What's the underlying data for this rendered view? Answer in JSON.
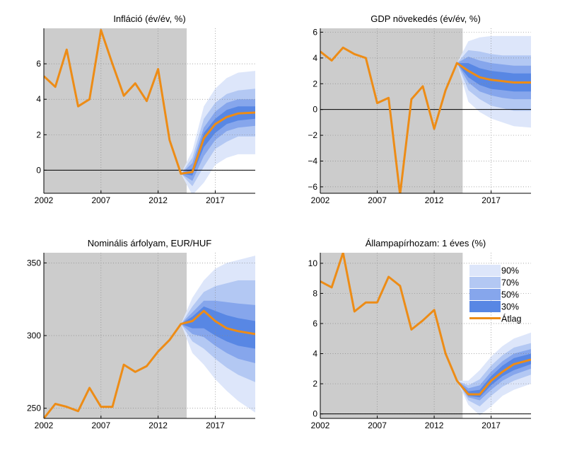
{
  "colors": {
    "history_shade": "#cccccc",
    "band_90": "#dde6fa",
    "band_70": "#b3c8f3",
    "band_50": "#86a6ec",
    "band_30": "#5887e4",
    "mean_line": "#ed8c16",
    "zero_line": "#000000",
    "grid": "#888888"
  },
  "legend": {
    "items": [
      {
        "label": "90%",
        "color_key": "band_90",
        "kind": "patch"
      },
      {
        "label": "70%",
        "color_key": "band_70",
        "kind": "patch"
      },
      {
        "label": "50%",
        "color_key": "band_50",
        "kind": "patch"
      },
      {
        "label": "30%",
        "color_key": "band_30",
        "kind": "patch"
      },
      {
        "label": "Átlag",
        "color_key": "mean_line",
        "kind": "line"
      }
    ]
  },
  "chart_data": [
    {
      "type": "area",
      "id": "inflation",
      "title": "Infláció (év/év, %)",
      "xlim": [
        2002,
        2020.5
      ],
      "ylim": [
        -1.3,
        8.0
      ],
      "xticks": [
        2002,
        2007,
        2012,
        2017
      ],
      "yticks": [
        0,
        2,
        4,
        6
      ],
      "ytick_labels": [
        "0",
        "2",
        "4",
        "6"
      ],
      "history_end": 2014.5,
      "zero_line": true,
      "mean": {
        "x": [
          2002,
          2003,
          2004,
          2005,
          2006,
          2007,
          2008,
          2009,
          2010,
          2011,
          2012,
          2013,
          2014,
          2015,
          2016,
          2017,
          2018,
          2019,
          2020.5
        ],
        "y": [
          5.3,
          4.7,
          6.8,
          3.6,
          4.0,
          7.9,
          6.0,
          4.2,
          4.9,
          3.9,
          5.7,
          1.7,
          -0.2,
          -0.1,
          1.8,
          2.6,
          3.0,
          3.2,
          3.25
        ]
      },
      "fan": {
        "x": [
          2014,
          2015,
          2016,
          2017,
          2018,
          2019,
          2020.5
        ],
        "bands": [
          {
            "level": "90%",
            "lower": [
              -0.2,
              -1.4,
              -0.7,
              0.3,
              0.7,
              0.9,
              0.9
            ],
            "upper": [
              -0.2,
              1.1,
              3.6,
              4.6,
              5.2,
              5.5,
              5.6
            ]
          },
          {
            "level": "70%",
            "lower": [
              -0.2,
              -0.9,
              0.2,
              1.2,
              1.6,
              1.9,
              1.9
            ],
            "upper": [
              -0.2,
              0.7,
              2.9,
              3.8,
              4.3,
              4.5,
              4.6
            ]
          },
          {
            "level": "50%",
            "lower": [
              -0.2,
              -0.6,
              0.8,
              1.7,
              2.2,
              2.4,
              2.5
            ],
            "upper": [
              -0.2,
              0.4,
              2.4,
              3.3,
              3.8,
              4.0,
              4.0
            ]
          },
          {
            "level": "30%",
            "lower": [
              -0.2,
              -0.3,
              1.3,
              2.1,
              2.6,
              2.8,
              2.9
            ],
            "upper": [
              -0.2,
              0.1,
              2.1,
              2.9,
              3.4,
              3.6,
              3.6
            ]
          }
        ]
      }
    },
    {
      "type": "area",
      "id": "gdp",
      "title": "GDP növekedés (év/év, %)",
      "xlim": [
        2002,
        2020.5
      ],
      "ylim": [
        -6.5,
        6.3
      ],
      "xticks": [
        2002,
        2007,
        2012,
        2017
      ],
      "yticks": [
        -6,
        -4,
        -2,
        0,
        2,
        4,
        6
      ],
      "ytick_labels": [
        "−6",
        "−4",
        "−2",
        "0",
        "2",
        "4",
        "6"
      ],
      "history_end": 2014.5,
      "zero_line": true,
      "mean": {
        "x": [
          2002,
          2003,
          2004,
          2005,
          2006,
          2007,
          2008,
          2009,
          2010,
          2011,
          2012,
          2013,
          2014,
          2015,
          2016,
          2017,
          2018,
          2019,
          2020.5
        ],
        "y": [
          4.5,
          3.8,
          4.8,
          4.3,
          4.0,
          0.5,
          0.9,
          -6.6,
          0.8,
          1.8,
          -1.5,
          1.5,
          3.6,
          3.0,
          2.5,
          2.3,
          2.2,
          2.1,
          2.1
        ]
      },
      "fan": {
        "x": [
          2014,
          2015,
          2016,
          2017,
          2018,
          2019,
          2020.5
        ],
        "bands": [
          {
            "level": "90%",
            "lower": [
              3.6,
              0.6,
              -0.2,
              -0.7,
              -1.0,
              -1.3,
              -1.4
            ],
            "upper": [
              3.6,
              5.3,
              5.6,
              5.7,
              5.7,
              5.7,
              5.7
            ]
          },
          {
            "level": "70%",
            "lower": [
              3.6,
              1.5,
              0.8,
              0.3,
              0.1,
              -0.1,
              -0.1
            ],
            "upper": [
              3.6,
              4.6,
              4.5,
              4.3,
              4.2,
              4.2,
              4.2
            ]
          },
          {
            "level": "50%",
            "lower": [
              3.6,
              2.1,
              1.4,
              1.1,
              0.9,
              0.8,
              0.8
            ],
            "upper": [
              3.6,
              4.1,
              3.8,
              3.6,
              3.5,
              3.4,
              3.4
            ]
          },
          {
            "level": "30%",
            "lower": [
              3.6,
              2.5,
              1.9,
              1.6,
              1.5,
              1.4,
              1.4
            ],
            "upper": [
              3.6,
              3.6,
              3.2,
              3.0,
              2.9,
              2.8,
              2.8
            ]
          }
        ]
      }
    },
    {
      "type": "area",
      "id": "exchange_rate",
      "title": "Nominális árfolyam, EUR/HUF",
      "xlim": [
        2002,
        2020.5
      ],
      "ylim": [
        243,
        357
      ],
      "xticks": [
        2002,
        2007,
        2012,
        2017
      ],
      "yticks": [
        250,
        300,
        350
      ],
      "ytick_labels": [
        "250",
        "300",
        "350"
      ],
      "history_end": 2014.5,
      "zero_line": false,
      "mean": {
        "x": [
          2002,
          2003,
          2004,
          2005,
          2006,
          2007,
          2008,
          2009,
          2010,
          2011,
          2012,
          2013,
          2014,
          2015,
          2016,
          2017,
          2018,
          2019,
          2020.5
        ],
        "y": [
          243,
          253,
          251,
          248,
          264,
          251,
          251,
          280,
          275,
          279,
          289,
          297,
          308,
          310,
          317,
          310,
          305,
          303,
          301
        ]
      },
      "fan": {
        "x": [
          2014,
          2015,
          2016,
          2017,
          2018,
          2019,
          2020.5
        ],
        "bands": [
          {
            "level": "90%",
            "lower": [
              308,
              288,
              280,
              270,
              262,
              255,
              247
            ],
            "upper": [
              308,
              326,
              338,
              346,
              350,
              352,
              355
            ]
          },
          {
            "level": "70%",
            "lower": [
              308,
              296,
              291,
              284,
              278,
              273,
              268
            ],
            "upper": [
              308,
              320,
              330,
              334,
              336,
              338,
              338
            ]
          },
          {
            "level": "50%",
            "lower": [
              308,
              301,
              299,
              293,
              288,
              284,
              281
            ],
            "upper": [
              308,
              316,
              324,
              324,
              323,
              322,
              321
            ]
          },
          {
            "level": "30%",
            "lower": [
              308,
              305,
              305,
              300,
              296,
              293,
              291
            ],
            "upper": [
              308,
              313,
              320,
              317,
              314,
              312,
              310
            ]
          }
        ]
      }
    },
    {
      "type": "area",
      "id": "yield",
      "title": "Állampapírhozam: 1 éves (%)",
      "xlim": [
        2002,
        2020.5
      ],
      "ylim": [
        -0.3,
        10.7
      ],
      "xticks": [
        2002,
        2007,
        2012,
        2017
      ],
      "yticks": [
        0,
        2,
        4,
        6,
        8,
        10
      ],
      "ytick_labels": [
        "0",
        "2",
        "4",
        "6",
        "8",
        "10"
      ],
      "history_end": 2014.5,
      "zero_line": true,
      "mean": {
        "x": [
          2002,
          2003,
          2004,
          2005,
          2006,
          2007,
          2008,
          2009,
          2010,
          2011,
          2012,
          2013,
          2014,
          2015,
          2016,
          2017,
          2018,
          2019,
          2020.5
        ],
        "y": [
          8.8,
          8.4,
          10.7,
          6.8,
          7.4,
          7.4,
          9.1,
          8.5,
          5.6,
          6.2,
          6.9,
          4.0,
          2.2,
          1.3,
          1.3,
          2.2,
          2.8,
          3.3,
          3.6
        ]
      },
      "fan": {
        "x": [
          2014,
          2015,
          2016,
          2017,
          2018,
          2019,
          2020.5
        ],
        "bands": [
          {
            "level": "90%",
            "lower": [
              2.2,
              0.6,
              -0.1,
              0.5,
              1.2,
              1.6,
              2.0
            ],
            "upper": [
              2.2,
              2.2,
              2.9,
              3.8,
              4.5,
              5.0,
              5.4
            ]
          },
          {
            "level": "70%",
            "lower": [
              2.2,
              0.9,
              0.5,
              1.2,
              1.8,
              2.2,
              2.6
            ],
            "upper": [
              2.2,
              1.9,
              2.3,
              3.2,
              3.9,
              4.4,
              4.7
            ]
          },
          {
            "level": "50%",
            "lower": [
              2.2,
              1.1,
              0.9,
              1.6,
              2.2,
              2.6,
              3.0
            ],
            "upper": [
              2.2,
              1.7,
              1.9,
              2.8,
              3.5,
              4.0,
              4.3
            ]
          },
          {
            "level": "30%",
            "lower": [
              2.2,
              1.2,
              1.1,
              1.9,
              2.5,
              2.9,
              3.3
            ],
            "upper": [
              2.2,
              1.5,
              1.6,
              2.5,
              3.2,
              3.7,
              4.0
            ]
          }
        ]
      }
    }
  ]
}
